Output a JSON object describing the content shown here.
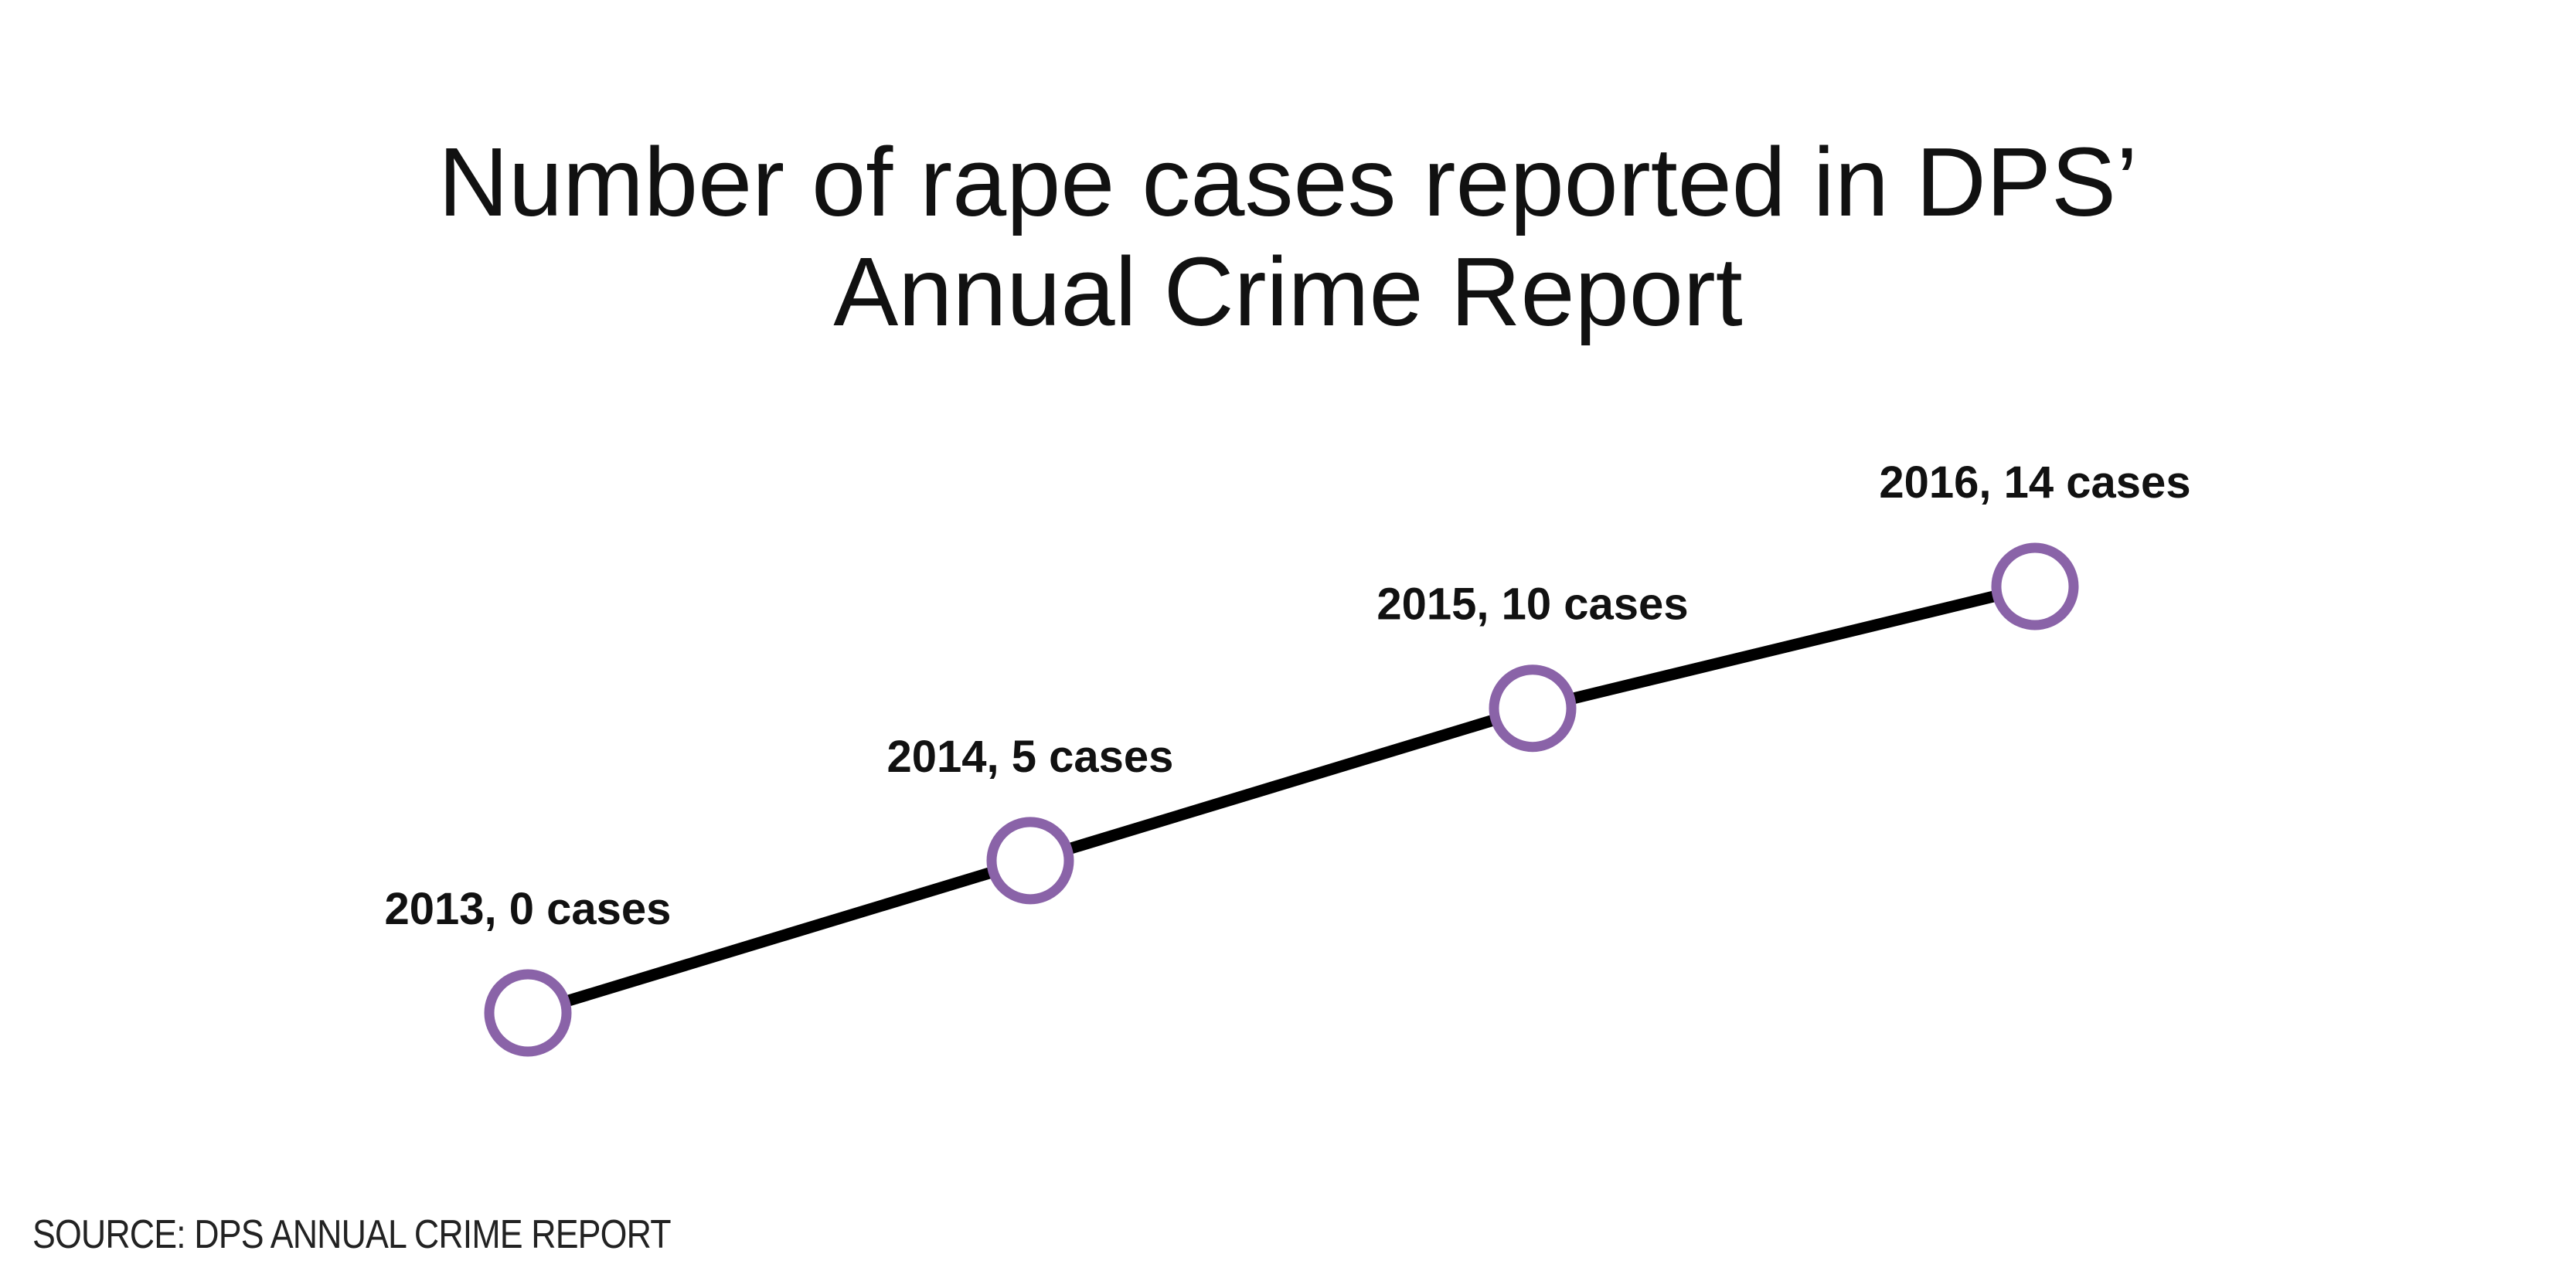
{
  "chart_data": {
    "type": "line",
    "title_lines": [
      "Number of rape cases reported in DPS’",
      "Annual Crime Report"
    ],
    "x": [
      2013,
      2014,
      2015,
      2016
    ],
    "series": [
      {
        "values": [
          0,
          5,
          10,
          14
        ],
        "point_labels": [
          "2013, 0 cases",
          "2014, 5 cases",
          "2015, 10 cases",
          "2016, 14 cases"
        ]
      }
    ],
    "xlabel": "",
    "ylabel": "",
    "grid": false,
    "axes_visible": false,
    "colors": {
      "line": "#000000",
      "marker_stroke": "#8a63a8",
      "marker_fill": "#ffffff"
    }
  },
  "source": "SOURCE: DPS ANNUAL CRIME REPORT"
}
